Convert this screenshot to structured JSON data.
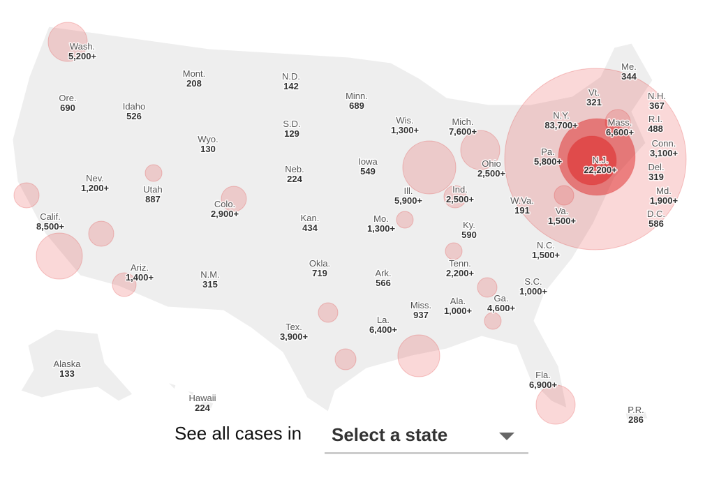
{
  "states": [
    {
      "name": "Wash.",
      "cases": "5,200+"
    },
    {
      "name": "Mont.",
      "cases": "208"
    },
    {
      "name": "N.D.",
      "cases": "142"
    },
    {
      "name": "Minn.",
      "cases": "689"
    },
    {
      "name": "Ore.",
      "cases": "690"
    },
    {
      "name": "Idaho",
      "cases": "526"
    },
    {
      "name": "Wis.",
      "cases": "1,300+"
    },
    {
      "name": "Mich.",
      "cases": "7,600+"
    },
    {
      "name": "S.D.",
      "cases": "129"
    },
    {
      "name": "Wyo.",
      "cases": "130"
    },
    {
      "name": "Iowa",
      "cases": "549"
    },
    {
      "name": "Neb.",
      "cases": "224"
    },
    {
      "name": "Nev.",
      "cases": "1,200+"
    },
    {
      "name": "Utah",
      "cases": "887"
    },
    {
      "name": "Ohio",
      "cases": "2,500+"
    },
    {
      "name": "Pa.",
      "cases": "5,800+"
    },
    {
      "name": "N.Y.",
      "cases": "83,700+"
    },
    {
      "name": "Vt.",
      "cases": "321"
    },
    {
      "name": "Me.",
      "cases": "344"
    },
    {
      "name": "N.H.",
      "cases": "367"
    },
    {
      "name": "Mass.",
      "cases": "6,600+"
    },
    {
      "name": "R.I.",
      "cases": "488"
    },
    {
      "name": "Conn.",
      "cases": "3,100+"
    },
    {
      "name": "N.J.",
      "cases": "22,200+"
    },
    {
      "name": "Del.",
      "cases": "319"
    },
    {
      "name": "Md.",
      "cases": "1,900+"
    },
    {
      "name": "D.C.",
      "cases": "586"
    },
    {
      "name": "Colo.",
      "cases": "2,900+"
    },
    {
      "name": "Ill.",
      "cases": "5,900+"
    },
    {
      "name": "Ind.",
      "cases": "2,500+"
    },
    {
      "name": "W.Va.",
      "cases": "191"
    },
    {
      "name": "Va.",
      "cases": "1,500+"
    },
    {
      "name": "Calif.",
      "cases": "8,500+"
    },
    {
      "name": "Kan.",
      "cases": "434"
    },
    {
      "name": "Mo.",
      "cases": "1,300+"
    },
    {
      "name": "Ky.",
      "cases": "590"
    },
    {
      "name": "N.C.",
      "cases": "1,500+"
    },
    {
      "name": "Okla.",
      "cases": "719"
    },
    {
      "name": "Tenn.",
      "cases": "2,200+"
    },
    {
      "name": "Ariz.",
      "cases": "1,400+"
    },
    {
      "name": "N.M.",
      "cases": "315"
    },
    {
      "name": "Ark.",
      "cases": "566"
    },
    {
      "name": "S.C.",
      "cases": "1,000+"
    },
    {
      "name": "Ala.",
      "cases": "1,000+"
    },
    {
      "name": "Ga.",
      "cases": "4,600+"
    },
    {
      "name": "Miss.",
      "cases": "937"
    },
    {
      "name": "La.",
      "cases": "6,400+"
    },
    {
      "name": "Tex.",
      "cases": "3,900+"
    },
    {
      "name": "Alaska",
      "cases": "133"
    },
    {
      "name": "Fla.",
      "cases": "6,900+"
    },
    {
      "name": "Hawaii",
      "cases": "224"
    },
    {
      "name": "P.R.",
      "cases": "286"
    }
  ],
  "selector": {
    "prompt": "See all cases in",
    "placeholder": "Select a state"
  }
}
